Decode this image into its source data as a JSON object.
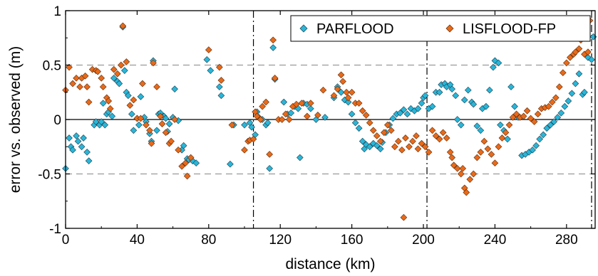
{
  "chart_data": {
    "type": "scatter",
    "xlabel": "distance (km)",
    "ylabel": "error vs. observed (m)",
    "xlim": [
      0,
      296
    ],
    "ylim": [
      -1,
      1
    ],
    "x_ticks": [
      0,
      40,
      80,
      120,
      160,
      200,
      240,
      280
    ],
    "y_ticks": [
      -1,
      -0.5,
      0,
      0.5,
      1
    ],
    "y_tick_labels": [
      "-1",
      "-0.5",
      "0",
      "0.5",
      "1"
    ],
    "reference_lines": {
      "solid_y": [
        0
      ],
      "dashed_y": [
        -0.5,
        0.5
      ],
      "dashdot_x": [
        105,
        202,
        294
      ]
    },
    "legend_position": "top-right",
    "grid": false,
    "series": [
      {
        "name": "PARFLOOD",
        "color": "#29b6d8",
        "points": [
          [
            0,
            -0.45
          ],
          [
            2,
            -0.17
          ],
          [
            3,
            -0.25
          ],
          [
            4,
            -0.28
          ],
          [
            6,
            -0.15
          ],
          [
            7,
            -0.2
          ],
          [
            9,
            -0.25
          ],
          [
            10,
            -0.17
          ],
          [
            12,
            -0.3
          ],
          [
            13,
            -0.38
          ],
          [
            16,
            -0.05
          ],
          [
            17,
            -0.02
          ],
          [
            19,
            -0.05
          ],
          [
            20,
            -0.02
          ],
          [
            21,
            0.15
          ],
          [
            22,
            -0.05
          ],
          [
            23,
            0.05
          ],
          [
            24,
            0.07
          ],
          [
            26,
            0.03
          ],
          [
            27,
            0.38
          ],
          [
            29,
            0.35
          ],
          [
            30,
            0.33
          ],
          [
            32,
            0.85
          ],
          [
            33,
            0.45
          ],
          [
            34,
            0.25
          ],
          [
            35,
            0.22
          ],
          [
            37,
            0.05
          ],
          [
            38,
            -0.1
          ],
          [
            40,
            0.01
          ],
          [
            41,
            -0.05
          ],
          [
            42,
            0.21
          ],
          [
            44,
            0.02
          ],
          [
            45,
            -0.02
          ],
          [
            47,
            -0.13
          ],
          [
            48,
            -0.2
          ],
          [
            49,
            0.54
          ],
          [
            51,
            -0.1
          ],
          [
            52,
            0.05
          ],
          [
            53,
            0.06
          ],
          [
            55,
            0.03
          ],
          [
            56,
            0.01
          ],
          [
            57,
            -0.11
          ],
          [
            58,
            -0.04
          ],
          [
            60,
            0.02
          ],
          [
            61,
            0.28
          ],
          [
            63,
            -0.01
          ],
          [
            65,
            -0.28
          ],
          [
            66,
            -0.24
          ],
          [
            68,
            -0.36
          ],
          [
            69,
            -0.37
          ],
          [
            71,
            -0.38
          ],
          [
            73,
            -0.4
          ],
          [
            79,
            0.55
          ],
          [
            81,
            0.45
          ],
          [
            86,
            0.3
          ],
          [
            87,
            0.22
          ],
          [
            92,
            -0.41
          ],
          [
            94,
            -0.05
          ],
          [
            100,
            -0.05
          ],
          [
            103,
            -0.03
          ],
          [
            104,
            -0.07
          ],
          [
            106,
            -0.14
          ],
          [
            107,
            0.07
          ],
          [
            108,
            0.02
          ],
          [
            110,
            0.0
          ],
          [
            112,
            -0.05
          ],
          [
            113,
            -0.03
          ],
          [
            114,
            -0.45
          ],
          [
            116,
            0.66
          ],
          [
            117,
            0.37
          ],
          [
            122,
            0.16
          ],
          [
            124,
            0.05
          ],
          [
            126,
            0.06
          ],
          [
            128,
            0.12
          ],
          [
            130,
            0.1
          ],
          [
            131,
            -0.35
          ],
          [
            133,
            0.15
          ],
          [
            135,
            0.14
          ],
          [
            137,
            0.1
          ],
          [
            140,
            0.0
          ],
          [
            145,
            0.02
          ],
          [
            150,
            0.2
          ],
          [
            152,
            0.3
          ],
          [
            154,
            0.25
          ],
          [
            156,
            0.18
          ],
          [
            158,
            0.16
          ],
          [
            160,
            0.05
          ],
          [
            162,
            -0.03
          ],
          [
            164,
            -0.08
          ],
          [
            166,
            -0.2
          ],
          [
            167,
            -0.27
          ],
          [
            168,
            -0.23
          ],
          [
            170,
            -0.25
          ],
          [
            172,
            -0.22
          ],
          [
            174,
            -0.24
          ],
          [
            176,
            -0.27
          ],
          [
            177,
            -0.21
          ],
          [
            179,
            -0.12
          ],
          [
            181,
            -0.05
          ],
          [
            183,
            0.01
          ],
          [
            185,
            0.05
          ],
          [
            187,
            0.06
          ],
          [
            189,
            0.09
          ],
          [
            191,
            0.05
          ],
          [
            193,
            0.1
          ],
          [
            195,
            0.08
          ],
          [
            197,
            0.1
          ],
          [
            199,
            0.15
          ],
          [
            200,
            0.2
          ],
          [
            201,
            0.22
          ],
          [
            203,
            0.1
          ],
          [
            205,
            0.12
          ],
          [
            207,
            0.25
          ],
          [
            209,
            0.25
          ],
          [
            210,
            0.32
          ],
          [
            212,
            0.33
          ],
          [
            213,
            0.3
          ],
          [
            215,
            0.32
          ],
          [
            216,
            0.28
          ],
          [
            218,
            0.22
          ],
          [
            219,
            0.0
          ],
          [
            221,
            -0.05
          ],
          [
            223,
            0.18
          ],
          [
            225,
            0.27
          ],
          [
            227,
            0.16
          ],
          [
            228,
            0.14
          ],
          [
            230,
            -0.06
          ],
          [
            232,
            -0.1
          ],
          [
            233,
            0.1
          ],
          [
            235,
            0.12
          ],
          [
            237,
            0.27
          ],
          [
            239,
            0.48
          ],
          [
            240,
            0.54
          ],
          [
            242,
            0.52
          ],
          [
            243,
            -0.05
          ],
          [
            245,
            -0.1
          ],
          [
            247,
            -0.18
          ],
          [
            249,
            0.3
          ],
          [
            251,
            0.12
          ],
          [
            253,
            0.02
          ],
          [
            255,
            -0.33
          ],
          [
            257,
            -0.32
          ],
          [
            259,
            -0.3
          ],
          [
            261,
            -0.28
          ],
          [
            263,
            -0.24
          ],
          [
            265,
            -0.18
          ],
          [
            267,
            -0.14
          ],
          [
            269,
            -0.08
          ],
          [
            271,
            -0.05
          ],
          [
            273,
            -0.02
          ],
          [
            275,
            0.02
          ],
          [
            277,
            0.06
          ],
          [
            279,
            0.12
          ],
          [
            281,
            0.17
          ],
          [
            283,
            0.24
          ],
          [
            285,
            0.33
          ],
          [
            287,
            0.42
          ],
          [
            289,
            0.23
          ],
          [
            290,
            0.25
          ],
          [
            292,
            0.57
          ],
          [
            294,
            0.55
          ],
          [
            295,
            0.76
          ]
        ]
      },
      {
        "name": "LISFLOOD-FP",
        "color": "#e86a1a",
        "points": [
          [
            0,
            0.27
          ],
          [
            2,
            0.48
          ],
          [
            4,
            0.33
          ],
          [
            6,
            0.38
          ],
          [
            8,
            0.3
          ],
          [
            9,
            0.38
          ],
          [
            11,
            0.4
          ],
          [
            12,
            0.3
          ],
          [
            13,
            0.16
          ],
          [
            15,
            0.46
          ],
          [
            17,
            0.45
          ],
          [
            18,
            0.44
          ],
          [
            20,
            0.38
          ],
          [
            21,
            0.3
          ],
          [
            23,
            0.2
          ],
          [
            24,
            0.17
          ],
          [
            25,
            0.1
          ],
          [
            27,
            0.46
          ],
          [
            29,
            0.42
          ],
          [
            31,
            0.5
          ],
          [
            32,
            0.86
          ],
          [
            34,
            0.53
          ],
          [
            36,
            0.13
          ],
          [
            38,
            0.18
          ],
          [
            40,
            0.01
          ],
          [
            42,
            0.01
          ],
          [
            43,
            0.33
          ],
          [
            45,
            -0.05
          ],
          [
            47,
            -0.1
          ],
          [
            48,
            -0.22
          ],
          [
            49,
            0.52
          ],
          [
            51,
            0.3
          ],
          [
            53,
            0.03
          ],
          [
            54,
            -0.04
          ],
          [
            56,
            -0.12
          ],
          [
            58,
            -0.22
          ],
          [
            59,
            -0.2
          ],
          [
            61,
            0.0
          ],
          [
            63,
            -0.28
          ],
          [
            65,
            -0.43
          ],
          [
            67,
            -0.4
          ],
          [
            68,
            -0.52
          ],
          [
            70,
            -0.35
          ],
          [
            80,
            0.64
          ],
          [
            86,
            0.48
          ],
          [
            87,
            0.36
          ],
          [
            93,
            -0.05
          ],
          [
            100,
            -0.28
          ],
          [
            102,
            -0.2
          ],
          [
            103,
            -0.19
          ],
          [
            105,
            -0.18
          ],
          [
            106,
            0.07
          ],
          [
            107,
            0.03
          ],
          [
            109,
            0.0
          ],
          [
            110,
            0.12
          ],
          [
            112,
            0.16
          ],
          [
            114,
            -0.32
          ],
          [
            116,
            0.73
          ],
          [
            117,
            0.38
          ],
          [
            119,
            0.0
          ],
          [
            121,
            0.0
          ],
          [
            123,
            0.05
          ],
          [
            125,
            0.0
          ],
          [
            127,
            0.12
          ],
          [
            129,
            0.14
          ],
          [
            132,
            0.15
          ],
          [
            135,
            0.03
          ],
          [
            137,
            0.15
          ],
          [
            141,
            0.04
          ],
          [
            144,
            0.27
          ],
          [
            150,
            0.22
          ],
          [
            152,
            0.28
          ],
          [
            154,
            0.41
          ],
          [
            155,
            0.35
          ],
          [
            157,
            0.25
          ],
          [
            158,
            0.2
          ],
          [
            160,
            0.25
          ],
          [
            162,
            0.15
          ],
          [
            164,
            0.15
          ],
          [
            166,
            0.08
          ],
          [
            168,
            0.04
          ],
          [
            170,
            -0.03
          ],
          [
            172,
            -0.1
          ],
          [
            174,
            -0.15
          ],
          [
            176,
            -0.2
          ],
          [
            178,
            -0.12
          ],
          [
            180,
            -0.05
          ],
          [
            182,
            -0.1
          ],
          [
            184,
            -0.25
          ],
          [
            186,
            -0.2
          ],
          [
            188,
            -0.28
          ],
          [
            189,
            -0.9
          ],
          [
            190,
            -0.17
          ],
          [
            192,
            -0.25
          ],
          [
            194,
            -0.2
          ],
          [
            196,
            -0.15
          ],
          [
            197,
            -0.27
          ],
          [
            199,
            -0.22
          ],
          [
            201,
            -0.25
          ],
          [
            203,
            -0.3
          ],
          [
            205,
            -0.1
          ],
          [
            207,
            -0.15
          ],
          [
            209,
            -0.18
          ],
          [
            211,
            -0.12
          ],
          [
            213,
            -0.17
          ],
          [
            215,
            -0.3
          ],
          [
            216,
            -0.35
          ],
          [
            217,
            -0.42
          ],
          [
            219,
            -0.45
          ],
          [
            221,
            -0.5
          ],
          [
            222,
            -0.45
          ],
          [
            223,
            -0.63
          ],
          [
            224,
            -0.67
          ],
          [
            226,
            -0.55
          ],
          [
            228,
            -0.5
          ],
          [
            230,
            -0.35
          ],
          [
            232,
            -0.3
          ],
          [
            234,
            -0.2
          ],
          [
            236,
            -0.27
          ],
          [
            238,
            -0.32
          ],
          [
            240,
            -0.4
          ],
          [
            242,
            -0.25
          ],
          [
            244,
            -0.17
          ],
          [
            246,
            -0.12
          ],
          [
            248,
            -0.05
          ],
          [
            250,
            0.02
          ],
          [
            252,
            0.05
          ],
          [
            254,
            0.02
          ],
          [
            256,
            0.03
          ],
          [
            258,
            0.08
          ],
          [
            260,
            0.01
          ],
          [
            262,
            -0.02
          ],
          [
            264,
            0.05
          ],
          [
            266,
            0.1
          ],
          [
            268,
            0.11
          ],
          [
            270,
            0.12
          ],
          [
            272,
            0.16
          ],
          [
            274,
            0.2
          ],
          [
            276,
            0.3
          ],
          [
            278,
            0.43
          ],
          [
            280,
            0.52
          ],
          [
            282,
            0.57
          ],
          [
            284,
            0.6
          ],
          [
            285,
            0.62
          ],
          [
            287,
            0.65
          ],
          [
            288,
            0.73
          ],
          [
            290,
            0.6
          ],
          [
            292,
            0.62
          ],
          [
            293,
            0.91
          ]
        ]
      }
    ]
  }
}
